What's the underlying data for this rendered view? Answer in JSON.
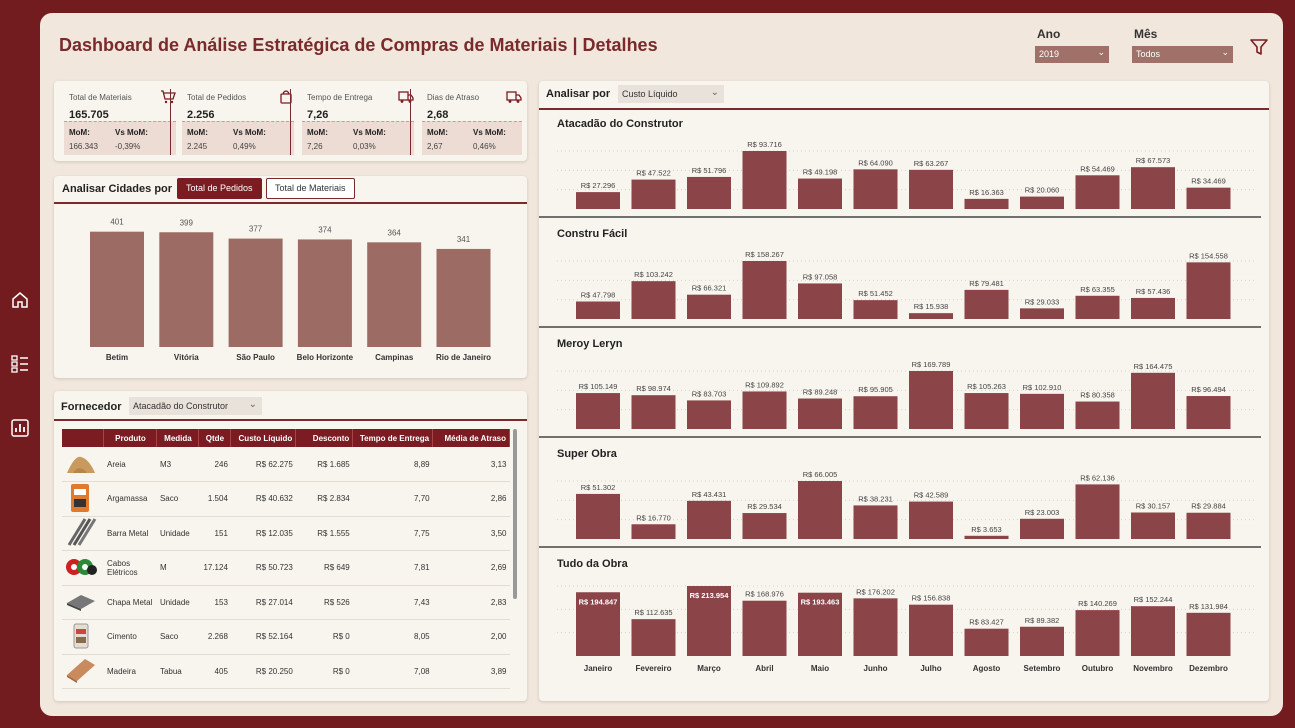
{
  "header": {
    "title": "Dashboard de Análise Estratégica de Compras de Materiais | Detalhes"
  },
  "filters": {
    "ano": {
      "label": "Ano",
      "value": "2019"
    },
    "mes": {
      "label": "Mês",
      "value": "Todos"
    }
  },
  "nav": {
    "icons": [
      "home-icon",
      "list-icon",
      "chart-icon"
    ]
  },
  "kpis": [
    {
      "label": "Total de Materiais",
      "value": "165.705",
      "mom_label": "MoM:",
      "vs_label": "Vs MoM:",
      "mom": "166.343",
      "vs": "-0,39%",
      "icon": "cart-icon"
    },
    {
      "label": "Total de Pedidos",
      "value": "2.256",
      "mom_label": "MoM:",
      "vs_label": "Vs MoM:",
      "mom": "2.245",
      "vs": "0,49%",
      "icon": "bag-icon"
    },
    {
      "label": "Tempo de Entrega",
      "value": "7,26",
      "mom_label": "MoM:",
      "vs_label": "Vs MoM:",
      "mom": "7,26",
      "vs": "0,03%",
      "icon": "truck-icon"
    },
    {
      "label": "Dias de Atraso",
      "value": "2,68",
      "mom_label": "MoM:",
      "vs_label": "Vs MoM:",
      "mom": "2,67",
      "vs": "0,46%",
      "icon": "truck-icon"
    }
  ],
  "cities": {
    "title": "Analisar Cidades por",
    "btn_active": "Total de Pedidos",
    "btn_inactive": "Total de Materiais",
    "bar_color": "#9b6b64"
  },
  "fornecedor": {
    "label": "Fornecedor",
    "value": "Atacadão do Construtor",
    "columns": [
      "Produto",
      "Medida",
      "Qtde",
      "Custo Líquido",
      "Desconto",
      "Tempo de Entrega",
      "Média de Atraso"
    ],
    "rows": [
      {
        "produto": "Areia",
        "medida": "M3",
        "qtde": "246",
        "custo": "R$ 62.275",
        "desconto": "R$ 1.685",
        "tempo": "8,89",
        "atraso": "3,13",
        "icon": "sand-icon"
      },
      {
        "produto": "Argamassa",
        "medida": "Saco",
        "qtde": "1.504",
        "custo": "R$ 40.632",
        "desconto": "R$ 2.834",
        "tempo": "7,70",
        "atraso": "2,86",
        "icon": "mortar-bag-icon"
      },
      {
        "produto": "Barra Metal",
        "medida": "Unidade",
        "qtde": "151",
        "custo": "R$ 12.035",
        "desconto": "R$ 1.555",
        "tempo": "7,75",
        "atraso": "3,50",
        "icon": "metal-bars-icon"
      },
      {
        "produto": "Cabos Elétricos",
        "medida": "M",
        "qtde": "17.124",
        "custo": "R$ 50.723",
        "desconto": "R$ 649",
        "tempo": "7,81",
        "atraso": "2,69",
        "icon": "cable-icon"
      },
      {
        "produto": "Chapa Metal",
        "medida": "Unidade",
        "qtde": "153",
        "custo": "R$ 27.014",
        "desconto": "R$ 526",
        "tempo": "7,43",
        "atraso": "2,83",
        "icon": "metal-sheet-icon"
      },
      {
        "produto": "Cimento",
        "medida": "Saco",
        "qtde": "2.268",
        "custo": "R$ 52.164",
        "desconto": "R$ 0",
        "tempo": "8,05",
        "atraso": "2,00",
        "icon": "cement-bag-icon"
      },
      {
        "produto": "Madeira",
        "medida": "Tabua",
        "qtde": "405",
        "custo": "R$ 20.250",
        "desconto": "R$ 0",
        "tempo": "7,08",
        "atraso": "3,89",
        "icon": "wood-icon"
      }
    ]
  },
  "analisar": {
    "label": "Analisar por",
    "value": "Custo Líquido"
  },
  "chart_data": [
    {
      "type": "bar",
      "categories": [
        "Betim",
        "Vitória",
        "São Paulo",
        "Belo Horizonte",
        "Campinas",
        "Rio de Janeiro"
      ],
      "values": [
        401,
        399,
        377,
        374,
        364,
        341
      ],
      "labels": [
        "401",
        "399",
        "377",
        "374",
        "364",
        "341"
      ],
      "ylim": [
        0,
        430
      ]
    },
    {
      "type": "bar",
      "title": "Atacadão do Construtor",
      "categories": [
        "Janeiro",
        "Fevereiro",
        "Março",
        "Abril",
        "Maio",
        "Junho",
        "Julho",
        "Agosto",
        "Setembro",
        "Outubro",
        "Novembro",
        "Dezembro"
      ],
      "values": [
        27296,
        47522,
        51796,
        93716,
        49198,
        64090,
        63267,
        16363,
        20060,
        54469,
        67573,
        34469
      ],
      "labels": [
        "R$ 27.296",
        "R$ 47.522",
        "R$ 51.796",
        "R$ 93.716",
        "R$ 49.198",
        "R$ 64.090",
        "R$ 63.267",
        "R$ 16.363",
        "R$ 20.060",
        "R$ 54.469",
        "R$ 67.573",
        "R$ 34.469"
      ]
    },
    {
      "type": "bar",
      "title": "Constru Fácil",
      "categories": [
        "Janeiro",
        "Fevereiro",
        "Março",
        "Abril",
        "Maio",
        "Junho",
        "Julho",
        "Agosto",
        "Setembro",
        "Outubro",
        "Novembro",
        "Dezembro"
      ],
      "values": [
        47798,
        103242,
        66321,
        158267,
        97058,
        51452,
        15938,
        79481,
        29033,
        63355,
        57436,
        154558
      ],
      "labels": [
        "R$ 47.798",
        "R$ 103.242",
        "R$ 66.321",
        "R$ 158.267",
        "R$ 97.058",
        "R$ 51.452",
        "R$ 15.938",
        "R$ 79.481",
        "R$ 29.033",
        "R$ 63.355",
        "R$ 57.436",
        "R$ 154.558"
      ]
    },
    {
      "type": "bar",
      "title": "Meroy Leryn",
      "categories": [
        "Janeiro",
        "Fevereiro",
        "Março",
        "Abril",
        "Maio",
        "Junho",
        "Julho",
        "Agosto",
        "Setembro",
        "Outubro",
        "Novembro",
        "Dezembro"
      ],
      "values": [
        105149,
        98974,
        83703,
        109892,
        89248,
        95905,
        169789,
        105263,
        102910,
        80358,
        164475,
        96494
      ],
      "labels": [
        "R$ 105.149",
        "R$ 98.974",
        "R$ 83.703",
        "R$ 109.892",
        "R$ 89.248",
        "R$ 95.905",
        "R$ 169.789",
        "R$ 105.263",
        "R$ 102.910",
        "R$ 80.358",
        "R$ 164.475",
        "R$ 96.494"
      ]
    },
    {
      "type": "bar",
      "title": "Super Obra",
      "categories": [
        "Janeiro",
        "Fevereiro",
        "Março",
        "Abril",
        "Maio",
        "Junho",
        "Julho",
        "Agosto",
        "Setembro",
        "Outubro",
        "Novembro",
        "Dezembro"
      ],
      "values": [
        51302,
        16770,
        43431,
        29534,
        66005,
        38231,
        42589,
        3653,
        23003,
        62136,
        30157,
        29884
      ],
      "labels": [
        "R$ 51.302",
        "R$ 16.770",
        "R$ 43.431",
        "R$ 29.534",
        "R$ 66.005",
        "R$ 38.231",
        "R$ 42.589",
        "R$ 3.653",
        "R$ 23.003",
        "R$ 62.136",
        "R$ 30.157",
        "R$ 29.884"
      ]
    },
    {
      "type": "bar",
      "title": "Tudo da Obra",
      "categories": [
        "Janeiro",
        "Fevereiro",
        "Março",
        "Abril",
        "Maio",
        "Junho",
        "Julho",
        "Agosto",
        "Setembro",
        "Outubro",
        "Novembro",
        "Dezembro"
      ],
      "values": [
        194847,
        112635,
        213954,
        168976,
        193463,
        176202,
        156838,
        83427,
        89382,
        140269,
        152244,
        131984
      ],
      "labels": [
        "R$ 194.847",
        "R$ 112.635",
        "R$ 213.954",
        "R$ 168.976",
        "R$ 193.463",
        "R$ 176.202",
        "R$ 156.838",
        "R$ 83.427",
        "R$ 89.382",
        "R$ 140.269",
        "R$ 152.244",
        "R$ 131.984"
      ]
    }
  ],
  "colors": {
    "accent": "#7a1c22",
    "bar": "#8b4448",
    "city_bar": "#9b6b64",
    "background": "#731c1f",
    "canvas": "#f1e7dc"
  }
}
